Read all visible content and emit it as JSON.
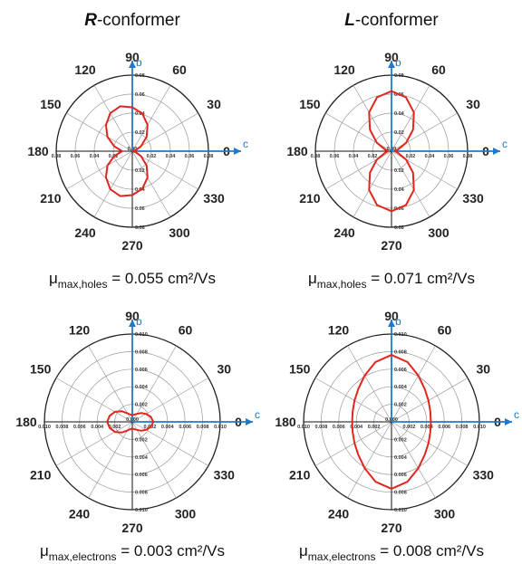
{
  "chart_data": [
    {
      "type": "polar",
      "title_prefix": "R",
      "title_suffix": "-conformer",
      "angle_labels": [
        "0",
        "30",
        "60",
        "90",
        "120",
        "150",
        "180",
        "210",
        "240",
        "270",
        "300",
        "330"
      ],
      "radial_ticks": [
        "0.08",
        "0.06",
        "0.04",
        "0.02",
        "0.00"
      ],
      "rmax": 0.09,
      "x_axis_label": "c",
      "y_axis_label": "b",
      "series": [
        {
          "theta_deg": [
            0,
            15,
            30,
            45,
            60,
            75,
            90,
            105,
            120,
            135,
            150,
            165,
            180,
            195,
            210,
            225,
            240,
            255,
            270,
            285,
            300,
            315,
            330,
            345,
            360
          ],
          "r": [
            0.0,
            0.004,
            0.012,
            0.024,
            0.036,
            0.046,
            0.052,
            0.055,
            0.052,
            0.044,
            0.034,
            0.022,
            0.012,
            0.022,
            0.034,
            0.044,
            0.052,
            0.055,
            0.052,
            0.046,
            0.036,
            0.024,
            0.012,
            0.004,
            0.0
          ],
          "color": "#e0261f"
        }
      ],
      "caption": {
        "mu": "μ",
        "sub": "max,holes",
        "value": " = 0.055 cm²/Vs"
      }
    },
    {
      "type": "polar",
      "title_prefix": "L",
      "title_suffix": "-conformer",
      "angle_labels": [
        "0",
        "30",
        "60",
        "90",
        "120",
        "150",
        "180",
        "210",
        "240",
        "270",
        "300",
        "330"
      ],
      "radial_ticks": [
        "0.08",
        "0.06",
        "0.04",
        "0.02",
        "0.00"
      ],
      "rmax": 0.09,
      "x_axis_label": "c",
      "y_axis_label": "b",
      "series": [
        {
          "theta_deg": [
            0,
            15,
            30,
            45,
            60,
            75,
            90,
            105,
            120,
            135,
            150,
            165,
            180,
            195,
            210,
            225,
            240,
            255,
            270,
            285,
            300,
            315,
            330,
            345,
            360
          ],
          "r": [
            0.004,
            0.008,
            0.02,
            0.036,
            0.053,
            0.066,
            0.071,
            0.066,
            0.053,
            0.036,
            0.02,
            0.008,
            0.004,
            0.008,
            0.02,
            0.036,
            0.053,
            0.066,
            0.071,
            0.066,
            0.053,
            0.036,
            0.02,
            0.008,
            0.004
          ],
          "color": "#e0261f"
        }
      ],
      "caption": {
        "mu": "μ",
        "sub": "max,holes",
        "value": " = 0.071 cm²/Vs"
      }
    },
    {
      "type": "polar",
      "angle_labels": [
        "0",
        "30",
        "60",
        "90",
        "120",
        "150",
        "180",
        "210",
        "240",
        "270",
        "300",
        "330"
      ],
      "radial_ticks": [
        "0.010",
        "0.008",
        "0.006",
        "0.004",
        "0.002",
        "0.000"
      ],
      "rmax": 0.0105,
      "x_axis_label": "c",
      "y_axis_label": "b",
      "series": [
        {
          "theta_deg": [
            0,
            15,
            30,
            45,
            60,
            75,
            90,
            105,
            120,
            135,
            150,
            165,
            180,
            195,
            210,
            225,
            240,
            255,
            270,
            285,
            300,
            315,
            330,
            345,
            360
          ],
          "r": [
            0.0025,
            0.0023,
            0.0019,
            0.0015,
            0.0011,
            0.0009,
            0.0008,
            0.0009,
            0.0012,
            0.0018,
            0.0024,
            0.0028,
            0.003,
            0.0028,
            0.0024,
            0.0018,
            0.0012,
            0.0009,
            0.0008,
            0.0009,
            0.0011,
            0.0015,
            0.0019,
            0.0023,
            0.0025
          ],
          "color": "#e0261f"
        }
      ],
      "caption": {
        "mu": "μ",
        "sub": "max,electrons",
        "value": " = 0.003 cm²/Vs"
      }
    },
    {
      "type": "polar",
      "angle_labels": [
        "0",
        "30",
        "60",
        "90",
        "120",
        "150",
        "180",
        "210",
        "240",
        "270",
        "300",
        "330"
      ],
      "radial_ticks": [
        "0.010",
        "0.008",
        "0.006",
        "0.004",
        "0.002",
        "0.000"
      ],
      "rmax": 0.0105,
      "x_axis_label": "c",
      "y_axis_label": "b",
      "series": [
        {
          "theta_deg": [
            0,
            15,
            30,
            45,
            60,
            75,
            90,
            105,
            120,
            135,
            150,
            165,
            180,
            195,
            210,
            225,
            240,
            255,
            270,
            285,
            300,
            315,
            330,
            345,
            360
          ],
          "r": [
            0.0047,
            0.0048,
            0.0051,
            0.0056,
            0.0064,
            0.0074,
            0.008,
            0.0074,
            0.0064,
            0.0056,
            0.0051,
            0.0048,
            0.0047,
            0.0048,
            0.0051,
            0.0056,
            0.0064,
            0.0074,
            0.008,
            0.0074,
            0.0064,
            0.0056,
            0.0051,
            0.0048,
            0.0047
          ],
          "color": "#e0261f"
        }
      ],
      "caption": {
        "mu": "μ",
        "sub": "max,electrons",
        "value": " = 0.008 cm²/Vs"
      }
    }
  ]
}
